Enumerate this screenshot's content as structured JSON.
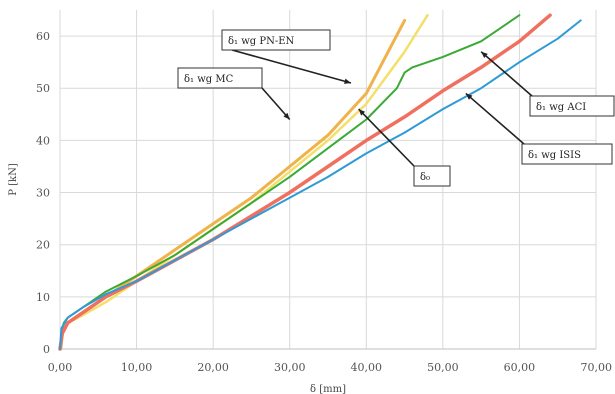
{
  "chart_data": {
    "type": "line",
    "title": "",
    "xlabel": "δ [mm]",
    "ylabel": "P [kN]",
    "xlim": [
      0,
      70
    ],
    "ylim": [
      0,
      65
    ],
    "grid": true,
    "x_tick_labels": [
      "0,00",
      "10,00",
      "20,00",
      "30,00",
      "40,00",
      "50,00",
      "60,00",
      "70,00"
    ],
    "y_tick_labels": [
      "0",
      "10",
      "20",
      "30",
      "40",
      "50",
      "60"
    ],
    "series": [
      {
        "color": "#f0b24a",
        "width": 3,
        "points": [
          [
            0.1,
            0
          ],
          [
            0.3,
            3
          ],
          [
            1,
            5
          ],
          [
            3,
            7
          ],
          [
            6,
            10
          ],
          [
            10,
            14
          ],
          [
            15,
            19
          ],
          [
            20,
            24
          ],
          [
            25,
            29
          ],
          [
            30,
            35
          ],
          [
            35,
            41
          ],
          [
            40,
            49
          ],
          [
            45,
            63
          ]
        ]
      },
      {
        "color": "#f2e06a",
        "width": 2.5,
        "points": [
          [
            0.1,
            0
          ],
          [
            0.3,
            3
          ],
          [
            1,
            5
          ],
          [
            3,
            6.5
          ],
          [
            6,
            9
          ],
          [
            10,
            13
          ],
          [
            15,
            18
          ],
          [
            20,
            23
          ],
          [
            25,
            28
          ],
          [
            30,
            34
          ],
          [
            35,
            40
          ],
          [
            40,
            47
          ],
          [
            45,
            57
          ],
          [
            48,
            64
          ]
        ]
      },
      {
        "color": "#3aaa35",
        "width": 2,
        "points": [
          [
            0,
            0
          ],
          [
            0.2,
            3
          ],
          [
            0.5,
            5
          ],
          [
            1,
            6
          ],
          [
            3,
            8
          ],
          [
            6,
            11
          ],
          [
            10,
            14
          ],
          [
            15,
            18
          ],
          [
            18,
            21
          ],
          [
            22,
            25
          ],
          [
            26,
            29
          ],
          [
            30,
            33
          ],
          [
            35,
            38.5
          ],
          [
            40,
            44
          ],
          [
            44,
            50
          ],
          [
            45,
            53
          ],
          [
            46,
            54
          ],
          [
            50,
            56
          ],
          [
            55,
            59
          ],
          [
            60,
            64
          ]
        ]
      },
      {
        "color": "#f07060",
        "width": 3.5,
        "points": [
          [
            0,
            0
          ],
          [
            0.3,
            3
          ],
          [
            1,
            5
          ],
          [
            3,
            7
          ],
          [
            6,
            10
          ],
          [
            10,
            13
          ],
          [
            15,
            17
          ],
          [
            20,
            21
          ],
          [
            25,
            25.5
          ],
          [
            30,
            30
          ],
          [
            35,
            35
          ],
          [
            40,
            40
          ],
          [
            45,
            44.5
          ],
          [
            50,
            49.5
          ],
          [
            55,
            54
          ],
          [
            60,
            59
          ],
          [
            64,
            64
          ]
        ]
      },
      {
        "color": "#2e9ad6",
        "width": 2,
        "points": [
          [
            0,
            0
          ],
          [
            0.2,
            4
          ],
          [
            1,
            6
          ],
          [
            3,
            8
          ],
          [
            6,
            10.5
          ],
          [
            10,
            13
          ],
          [
            15,
            17
          ],
          [
            20,
            21
          ],
          [
            25,
            25
          ],
          [
            30,
            29
          ],
          [
            35,
            33
          ],
          [
            40,
            37.5
          ],
          [
            45,
            41.5
          ],
          [
            50,
            46
          ],
          [
            55,
            50
          ],
          [
            60,
            55
          ],
          [
            65,
            59.5
          ],
          [
            68,
            63
          ]
        ]
      }
    ],
    "annotations": [
      {
        "text": "δ₁ wg PN-EN",
        "target": [
          38,
          51
        ]
      },
      {
        "text": "δ₁ wg MC",
        "target": [
          30,
          44
        ]
      },
      {
        "text": "δ₁ wg ACI",
        "target": [
          55,
          57
        ]
      },
      {
        "text": "δ₁ wg ISIS",
        "target": [
          53,
          49
        ]
      },
      {
        "text": "δ₀",
        "target": [
          39,
          46
        ]
      }
    ]
  }
}
